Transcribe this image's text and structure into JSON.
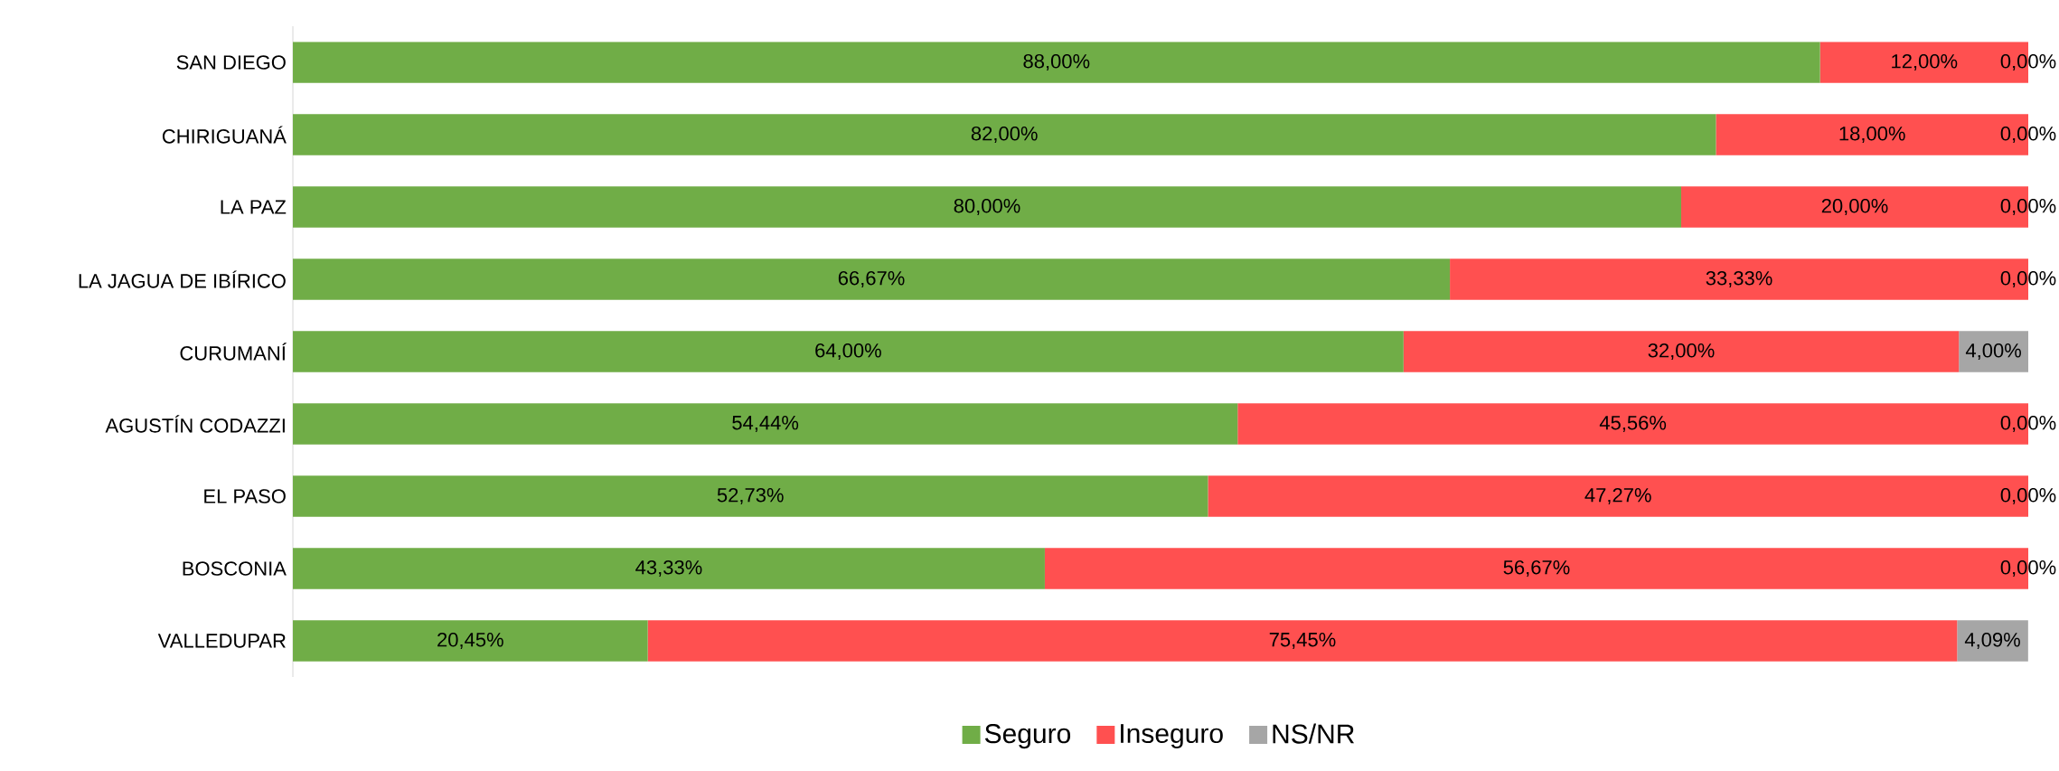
{
  "chart_data": {
    "type": "bar",
    "orientation": "horizontal",
    "stacked": true,
    "legend": "bottom",
    "tick_labels": "y",
    "categories": [
      "SAN DIEGO",
      "CHIRIGUANÁ",
      "LA PAZ",
      "LA JAGUA DE IBÍRICO",
      "CURUMANÍ",
      "AGUSTÍN CODAZZI",
      "EL PASO",
      "BOSCONIA",
      "VALLEDUPAR"
    ],
    "series": [
      {
        "name": "Seguro",
        "color": "#70ad47",
        "values": [
          88,
          82,
          80,
          66.67,
          64,
          54.44,
          52.73,
          43.33,
          20.45
        ],
        "value_labels": [
          "88,00%",
          "82,00%",
          "80,00%",
          "66,67%",
          "64,00%",
          "54,44%",
          "52,73%",
          "43,33%",
          "20,45%"
        ]
      },
      {
        "name": "Inseguro",
        "color": "#ff5050",
        "values": [
          12,
          18,
          20,
          33.33,
          32,
          45.56,
          47.27,
          56.67,
          75.45
        ],
        "value_labels": [
          "12,00%",
          "18,00%",
          "20,00%",
          "33,33%",
          "32,00%",
          "45,56%",
          "47,27%",
          "56,67%",
          "75,45%"
        ]
      },
      {
        "name": "NS/NR",
        "color": "#a6a6a6",
        "values": [
          0,
          0,
          0,
          0,
          4,
          0,
          0,
          0,
          4.09
        ],
        "value_labels": [
          "0,00%",
          "0,00%",
          "0,00%",
          "0,00%",
          "4,00%",
          "0,00%",
          "0,00%",
          "0,00%",
          "4,09%"
        ]
      }
    ]
  }
}
